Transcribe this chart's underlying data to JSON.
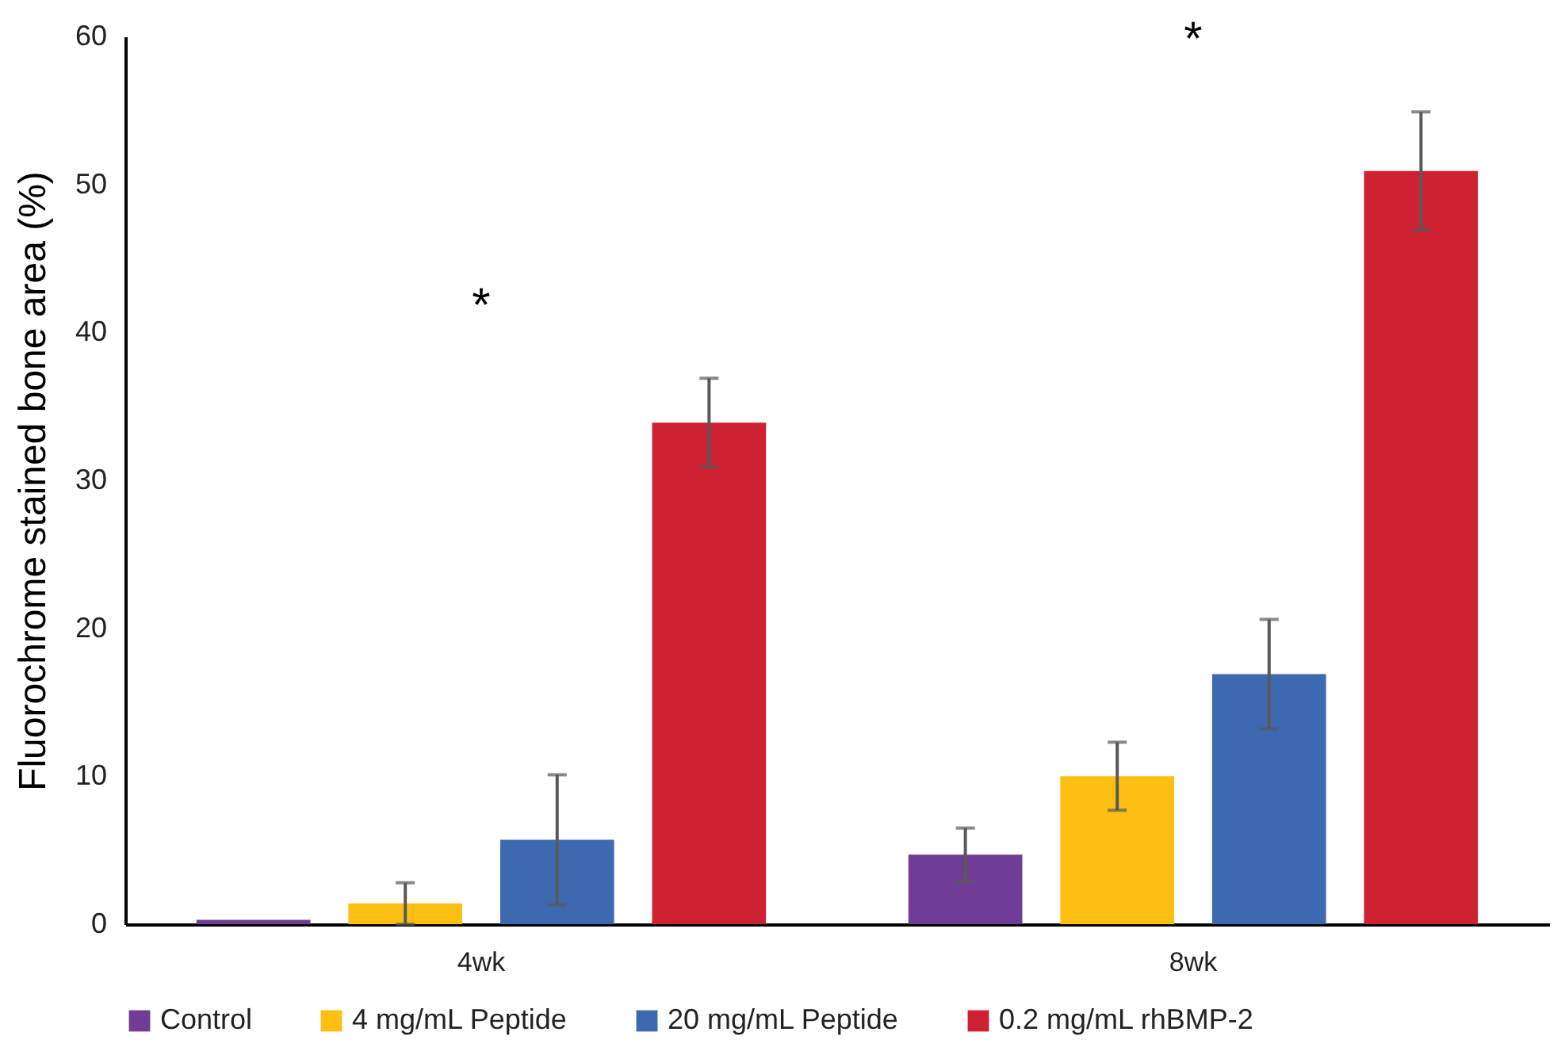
{
  "chart_data": {
    "type": "bar",
    "ylabel": "Fluorochrome stained bone area (%)",
    "categories": [
      "4wk",
      "8wk"
    ],
    "series": [
      {
        "name": "Control",
        "color": "#6f3c96",
        "values": [
          0.3,
          4.7
        ],
        "errors": [
          null,
          1.8
        ]
      },
      {
        "name": "4 mg/mL Peptide",
        "color": "#fdbf11",
        "values": [
          1.4,
          10.0
        ],
        "errors": [
          1.4,
          2.3
        ]
      },
      {
        "name": "20 mg/mL Peptide",
        "color": "#3d69b1",
        "values": [
          5.7,
          16.9
        ],
        "errors": [
          4.4,
          3.7
        ]
      },
      {
        "name": "0.2 mg/mL rhBMP-2",
        "color": "#ce2132",
        "values": [
          33.9,
          50.9
        ],
        "errors": [
          3.0,
          4.0
        ]
      }
    ],
    "ylim": [
      0,
      60
    ],
    "yticks": [
      0,
      10,
      20,
      30,
      40,
      50,
      60
    ],
    "grid": false,
    "legend": "bottom",
    "annotations": [
      "*",
      "*"
    ]
  }
}
